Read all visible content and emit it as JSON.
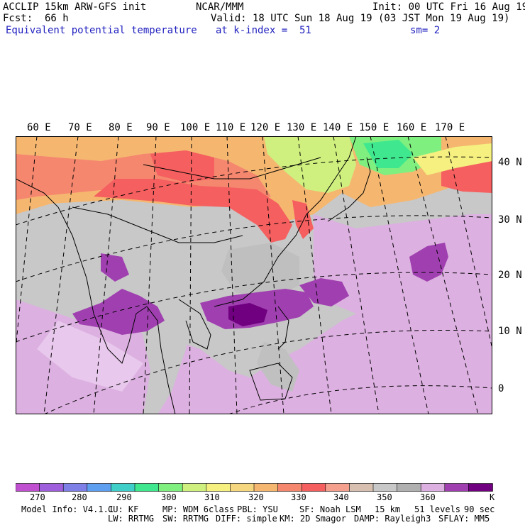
{
  "header": {
    "model": "ACCLIP 15km ARW-GFS init",
    "org": "NCAR/MMM",
    "init": "Init: 00 UTC Fri 16 Aug 19",
    "fcst_label": "Fcst:",
    "fcst_value": "66 h",
    "valid": "Valid: 18 UTC Sun 18 Aug 19 (03 JST Mon 19 Aug 19)",
    "field": "Equivalent potential temperature",
    "level": "at k-index =  51",
    "smoothing": "sm= 2"
  },
  "map": {
    "longitude_labels": [
      "60 E",
      "70 E",
      "80 E",
      "90 E",
      "100 E",
      "110 E",
      "120 E",
      "130 E",
      "140 E",
      "150 E",
      "160 E",
      "170 E"
    ],
    "latitude_labels": [
      "40 N",
      "30 N",
      "20 N",
      "10 N",
      "0"
    ],
    "colors": {
      "frame": "#000000",
      "grid": "#000000",
      "background_field": "#c8c8c8"
    }
  },
  "colorbar": {
    "colors": [
      "#c050d0",
      "#9f5fdc",
      "#7f7fe8",
      "#5f9ff0",
      "#3fcfc8",
      "#3fe88f",
      "#7ff07f",
      "#cff07f",
      "#f5f07f",
      "#f5d77f",
      "#f5b770",
      "#f5876f",
      "#f55f5f",
      "#f5a08f",
      "#d8c0b0",
      "#c8c8c8",
      "#b0b0b0",
      "#dcb0e0",
      "#a040b0",
      "#700080"
    ],
    "tick_labels": [
      "270",
      "280",
      "290",
      "300",
      "310",
      "320",
      "330",
      "340",
      "350",
      "360"
    ],
    "unit": "K"
  },
  "footer": {
    "model_info": "Model Info: V4.1.1",
    "cu": "CU: KF",
    "mp": "MP: WDM 6class",
    "pbl": "PBL: YSU",
    "sf": "SF: Noah LSM",
    "res": "15 km",
    "levels": "51 levels",
    "dt": "90 sec",
    "lw": "LW: RRTMG",
    "sw": "SW: RRTMG",
    "diff": "DIFF: simple",
    "km": "KM: 2D Smagor",
    "damp": "DAMP: Rayleigh3",
    "sflay": "SFLAY: MM5"
  }
}
